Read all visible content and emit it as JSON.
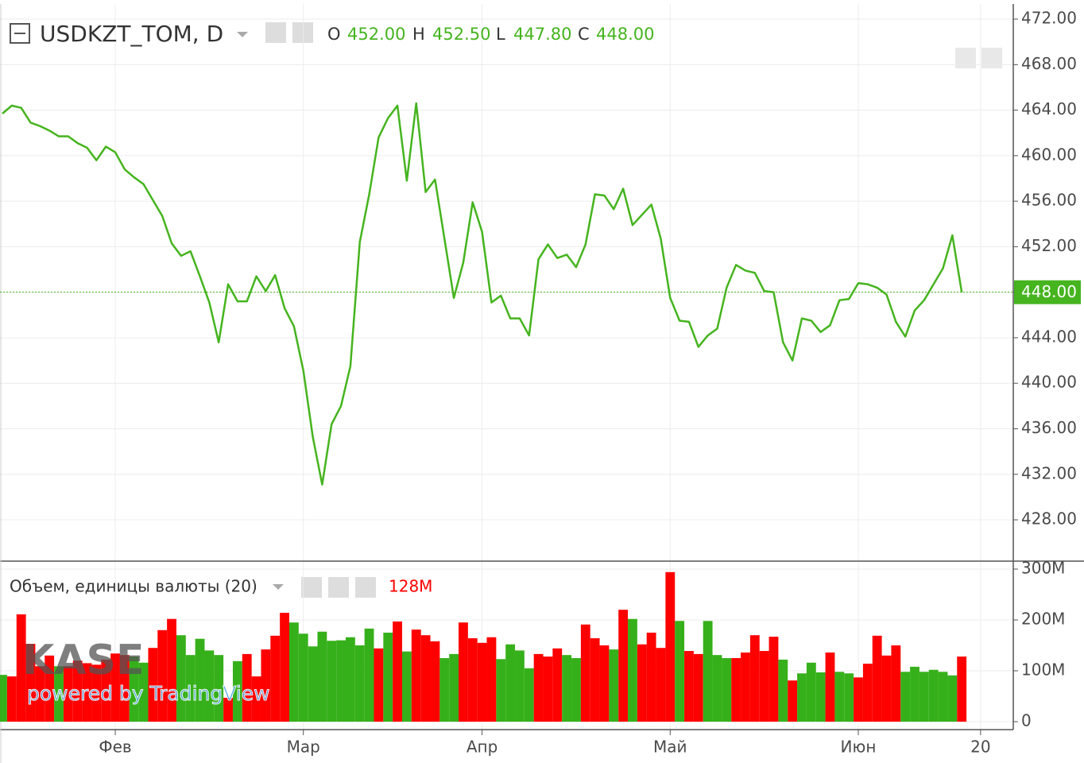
{
  "chart_data": [
    {
      "type": "line",
      "title": "USDKZT_TOM, D",
      "ohlc": [
        {
          "name": "O",
          "label": "452.00"
        },
        {
          "name": "H",
          "label": "452.50"
        },
        {
          "name": "L",
          "label": "447.80"
        },
        {
          "name": "C",
          "label": "448.00"
        }
      ],
      "categories": [
        null,
        null,
        null,
        null,
        null,
        null,
        null,
        null,
        null,
        null,
        null,
        null,
        "Фев",
        null,
        null,
        null,
        null,
        null,
        null,
        null,
        null,
        null,
        null,
        null,
        null,
        null,
        null,
        null,
        null,
        null,
        null,
        null,
        "Мар",
        null,
        null,
        null,
        null,
        null,
        null,
        null,
        null,
        null,
        null,
        null,
        null,
        null,
        null,
        null,
        null,
        null,
        null,
        "Апр",
        null,
        null,
        null,
        null,
        null,
        null,
        null,
        null,
        null,
        null,
        null,
        null,
        null,
        null,
        null,
        null,
        null,
        null,
        null,
        "Май",
        null,
        null,
        null,
        null,
        null,
        null,
        null,
        null,
        null,
        null,
        null,
        null,
        null,
        null,
        null,
        null,
        null,
        null,
        null,
        "Июн",
        null,
        null,
        null,
        null,
        null,
        null,
        null,
        null,
        null,
        null,
        null,
        null,
        "20"
      ],
      "values": [
        463.7,
        464.4,
        464.2,
        462.9,
        462.6,
        462.2,
        461.7,
        461.7,
        461.1,
        460.7,
        459.6,
        460.8,
        460.3,
        458.8,
        458.1,
        457.5,
        456.1,
        454.7,
        452.3,
        451.2,
        451.6,
        449.4,
        447.1,
        443.6,
        448.7,
        447.2,
        447.2,
        449.4,
        448.1,
        449.5,
        446.6,
        445.0,
        441.1,
        435.3,
        431.1,
        436.4,
        438.0,
        441.5,
        452.4,
        456.6,
        461.6,
        463.3,
        464.4,
        457.8,
        464.6,
        456.8,
        457.9,
        452.7,
        447.5,
        450.6,
        455.9,
        453.3,
        447.1,
        447.7,
        445.7,
        445.7,
        444.2,
        450.9,
        452.2,
        451.0,
        451.3,
        450.2,
        452.2,
        456.6,
        456.5,
        455.3,
        457.1,
        453.9,
        454.8,
        455.7,
        452.7,
        447.5,
        445.5,
        445.4,
        443.2,
        444.2,
        444.8,
        448.4,
        450.4,
        449.9,
        449.7,
        448.1,
        448.0,
        443.6,
        442.0,
        445.7,
        445.5,
        444.5,
        445.1,
        447.3,
        447.4,
        448.8,
        448.7,
        448.4,
        447.8,
        445.4,
        444.1,
        446.4,
        447.3,
        448.7,
        450.1,
        453.0,
        448.0,
        null,
        null
      ],
      "color": "#45b41e",
      "last_price": {
        "value": 448,
        "label": "448.00"
      },
      "ylim": [
        424.44,
        473.33
      ],
      "yticks": [
        {
          "value": 472,
          "label": "472.00"
        },
        {
          "value": 468,
          "label": "468.00"
        },
        {
          "value": 464,
          "label": "464.00"
        },
        {
          "value": 460,
          "label": "460.00"
        },
        {
          "value": 456,
          "label": "456.00"
        },
        {
          "value": 452,
          "label": "452.00"
        },
        {
          "value": 448,
          "label": "448.00"
        },
        {
          "value": 444,
          "label": "444.00"
        },
        {
          "value": 440,
          "label": "440.00"
        },
        {
          "value": 436,
          "label": "436.00"
        },
        {
          "value": 432,
          "label": "432.00"
        },
        {
          "value": 428,
          "label": "428.00"
        }
      ],
      "grid": true
    },
    {
      "type": "bar",
      "title": "Объем, единицы валюты (20)",
      "readout": "128M",
      "values": [
        92,
        89,
        211,
        153,
        109,
        130,
        109,
        109,
        120,
        115,
        112,
        122,
        134,
        131,
        128,
        116,
        145,
        180,
        202,
        170,
        131,
        163,
        140,
        131,
        47,
        119,
        133,
        89,
        142,
        169,
        214,
        195,
        173,
        148,
        177,
        159,
        160,
        166,
        150,
        183,
        144,
        175,
        197,
        138,
        181,
        170,
        158,
        125,
        133,
        195,
        164,
        155,
        166,
        123,
        152,
        140,
        105,
        133,
        128,
        144,
        131,
        125,
        191,
        164,
        150,
        142,
        220,
        202,
        152,
        175,
        145,
        294,
        198,
        139,
        133,
        198,
        131,
        125,
        125,
        136,
        170,
        139,
        167,
        122,
        81,
        95,
        116,
        97,
        136,
        98,
        95,
        87,
        114,
        169,
        130,
        150,
        98,
        108,
        98,
        102,
        98,
        91,
        128,
        null,
        null
      ],
      "up": [
        true,
        false,
        false,
        false,
        false,
        false,
        true,
        false,
        false,
        false,
        false,
        false,
        false,
        false,
        true,
        true,
        false,
        false,
        false,
        true,
        true,
        true,
        true,
        true,
        false,
        true,
        false,
        false,
        false,
        false,
        false,
        true,
        true,
        true,
        true,
        true,
        true,
        true,
        true,
        true,
        false,
        true,
        false,
        true,
        false,
        false,
        false,
        true,
        true,
        false,
        false,
        false,
        false,
        true,
        true,
        true,
        true,
        false,
        false,
        false,
        true,
        true,
        false,
        false,
        false,
        true,
        false,
        true,
        false,
        false,
        false,
        false,
        true,
        false,
        false,
        true,
        true,
        true,
        false,
        false,
        false,
        false,
        false,
        true,
        false,
        true,
        true,
        true,
        false,
        true,
        true,
        false,
        false,
        false,
        false,
        false,
        true,
        true,
        true,
        true,
        true,
        true,
        false,
        null,
        null
      ],
      "up_color": "#36b01a",
      "down_color": "#ff0000",
      "ylim": [
        -15.6,
        312.5
      ],
      "yticks": [
        0,
        {
          "value": 100,
          "label": "100M"
        },
        {
          "value": 200,
          "label": "200M"
        },
        {
          "value": 300,
          "label": "300M"
        }
      ],
      "grid": true
    }
  ],
  "watermark": {
    "logo": "KASE",
    "text": "powered by TradingView"
  }
}
